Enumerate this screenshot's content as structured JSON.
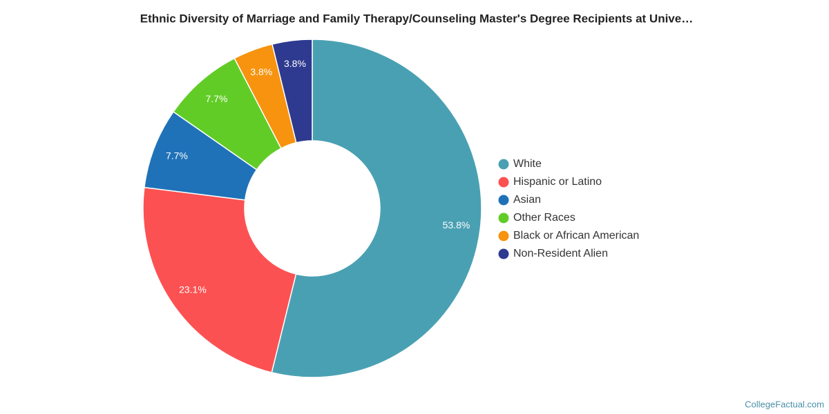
{
  "chart_data": {
    "type": "pie",
    "title": "Ethnic Diversity of Marriage and Family Therapy/Counseling Master's Degree Recipients at Unive…",
    "categories": [
      "White",
      "Hispanic or Latino",
      "Asian",
      "Other Races",
      "Black or African American",
      "Non-Resident Alien"
    ],
    "values": [
      53.8,
      23.1,
      7.7,
      7.7,
      3.8,
      3.8
    ],
    "value_labels": [
      "53.8%",
      "23.1%",
      "7.7%",
      "7.7%",
      "3.8%",
      "3.8%"
    ],
    "colors": [
      "#4aa0b3",
      "#fc5152",
      "#1f72b8",
      "#62cc27",
      "#f7930f",
      "#2e3a8f"
    ],
    "donut": true,
    "legend": "right",
    "watermark": "CollegeFactual.com"
  }
}
